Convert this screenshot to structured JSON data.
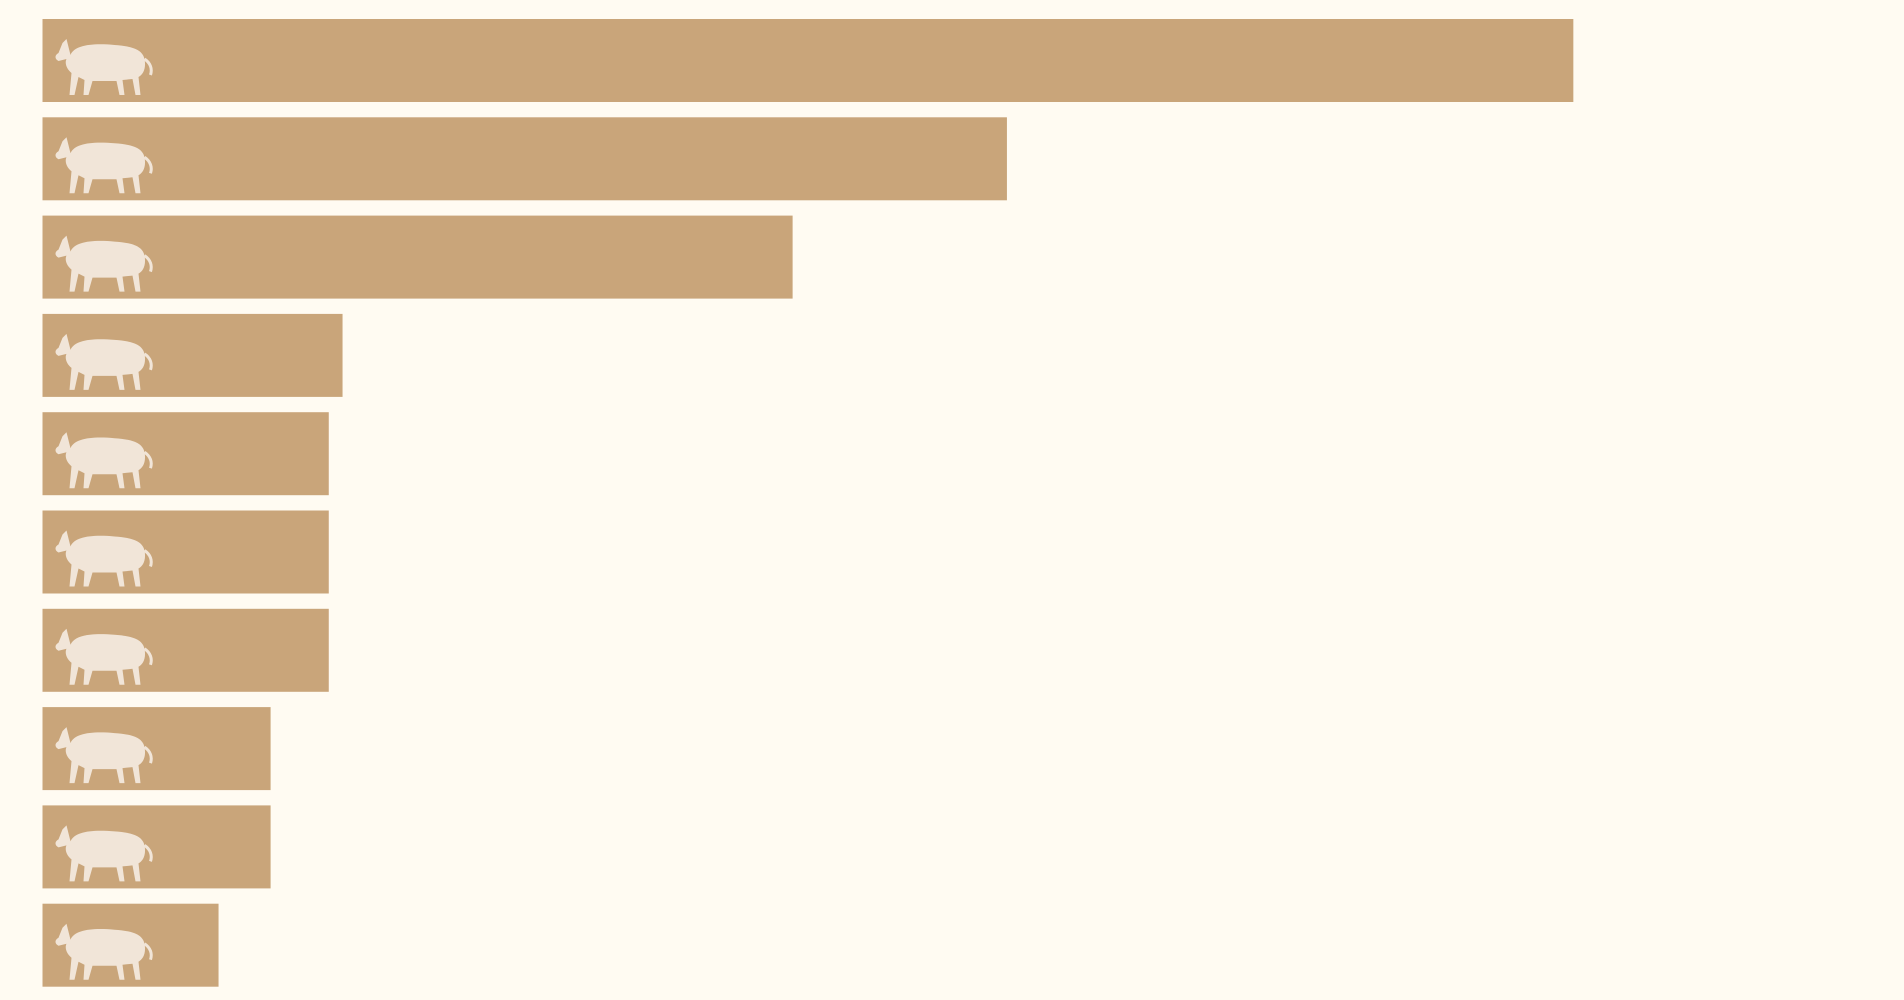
{
  "chart_data": {
    "type": "bar",
    "orientation": "horizontal",
    "values": [
      100,
      63,
      49,
      19.6,
      18.7,
      18.7,
      18.7,
      14.9,
      14.9,
      11.5
    ],
    "color": "#c9a57a",
    "xlim": [
      0,
      121.6
    ]
  }
}
